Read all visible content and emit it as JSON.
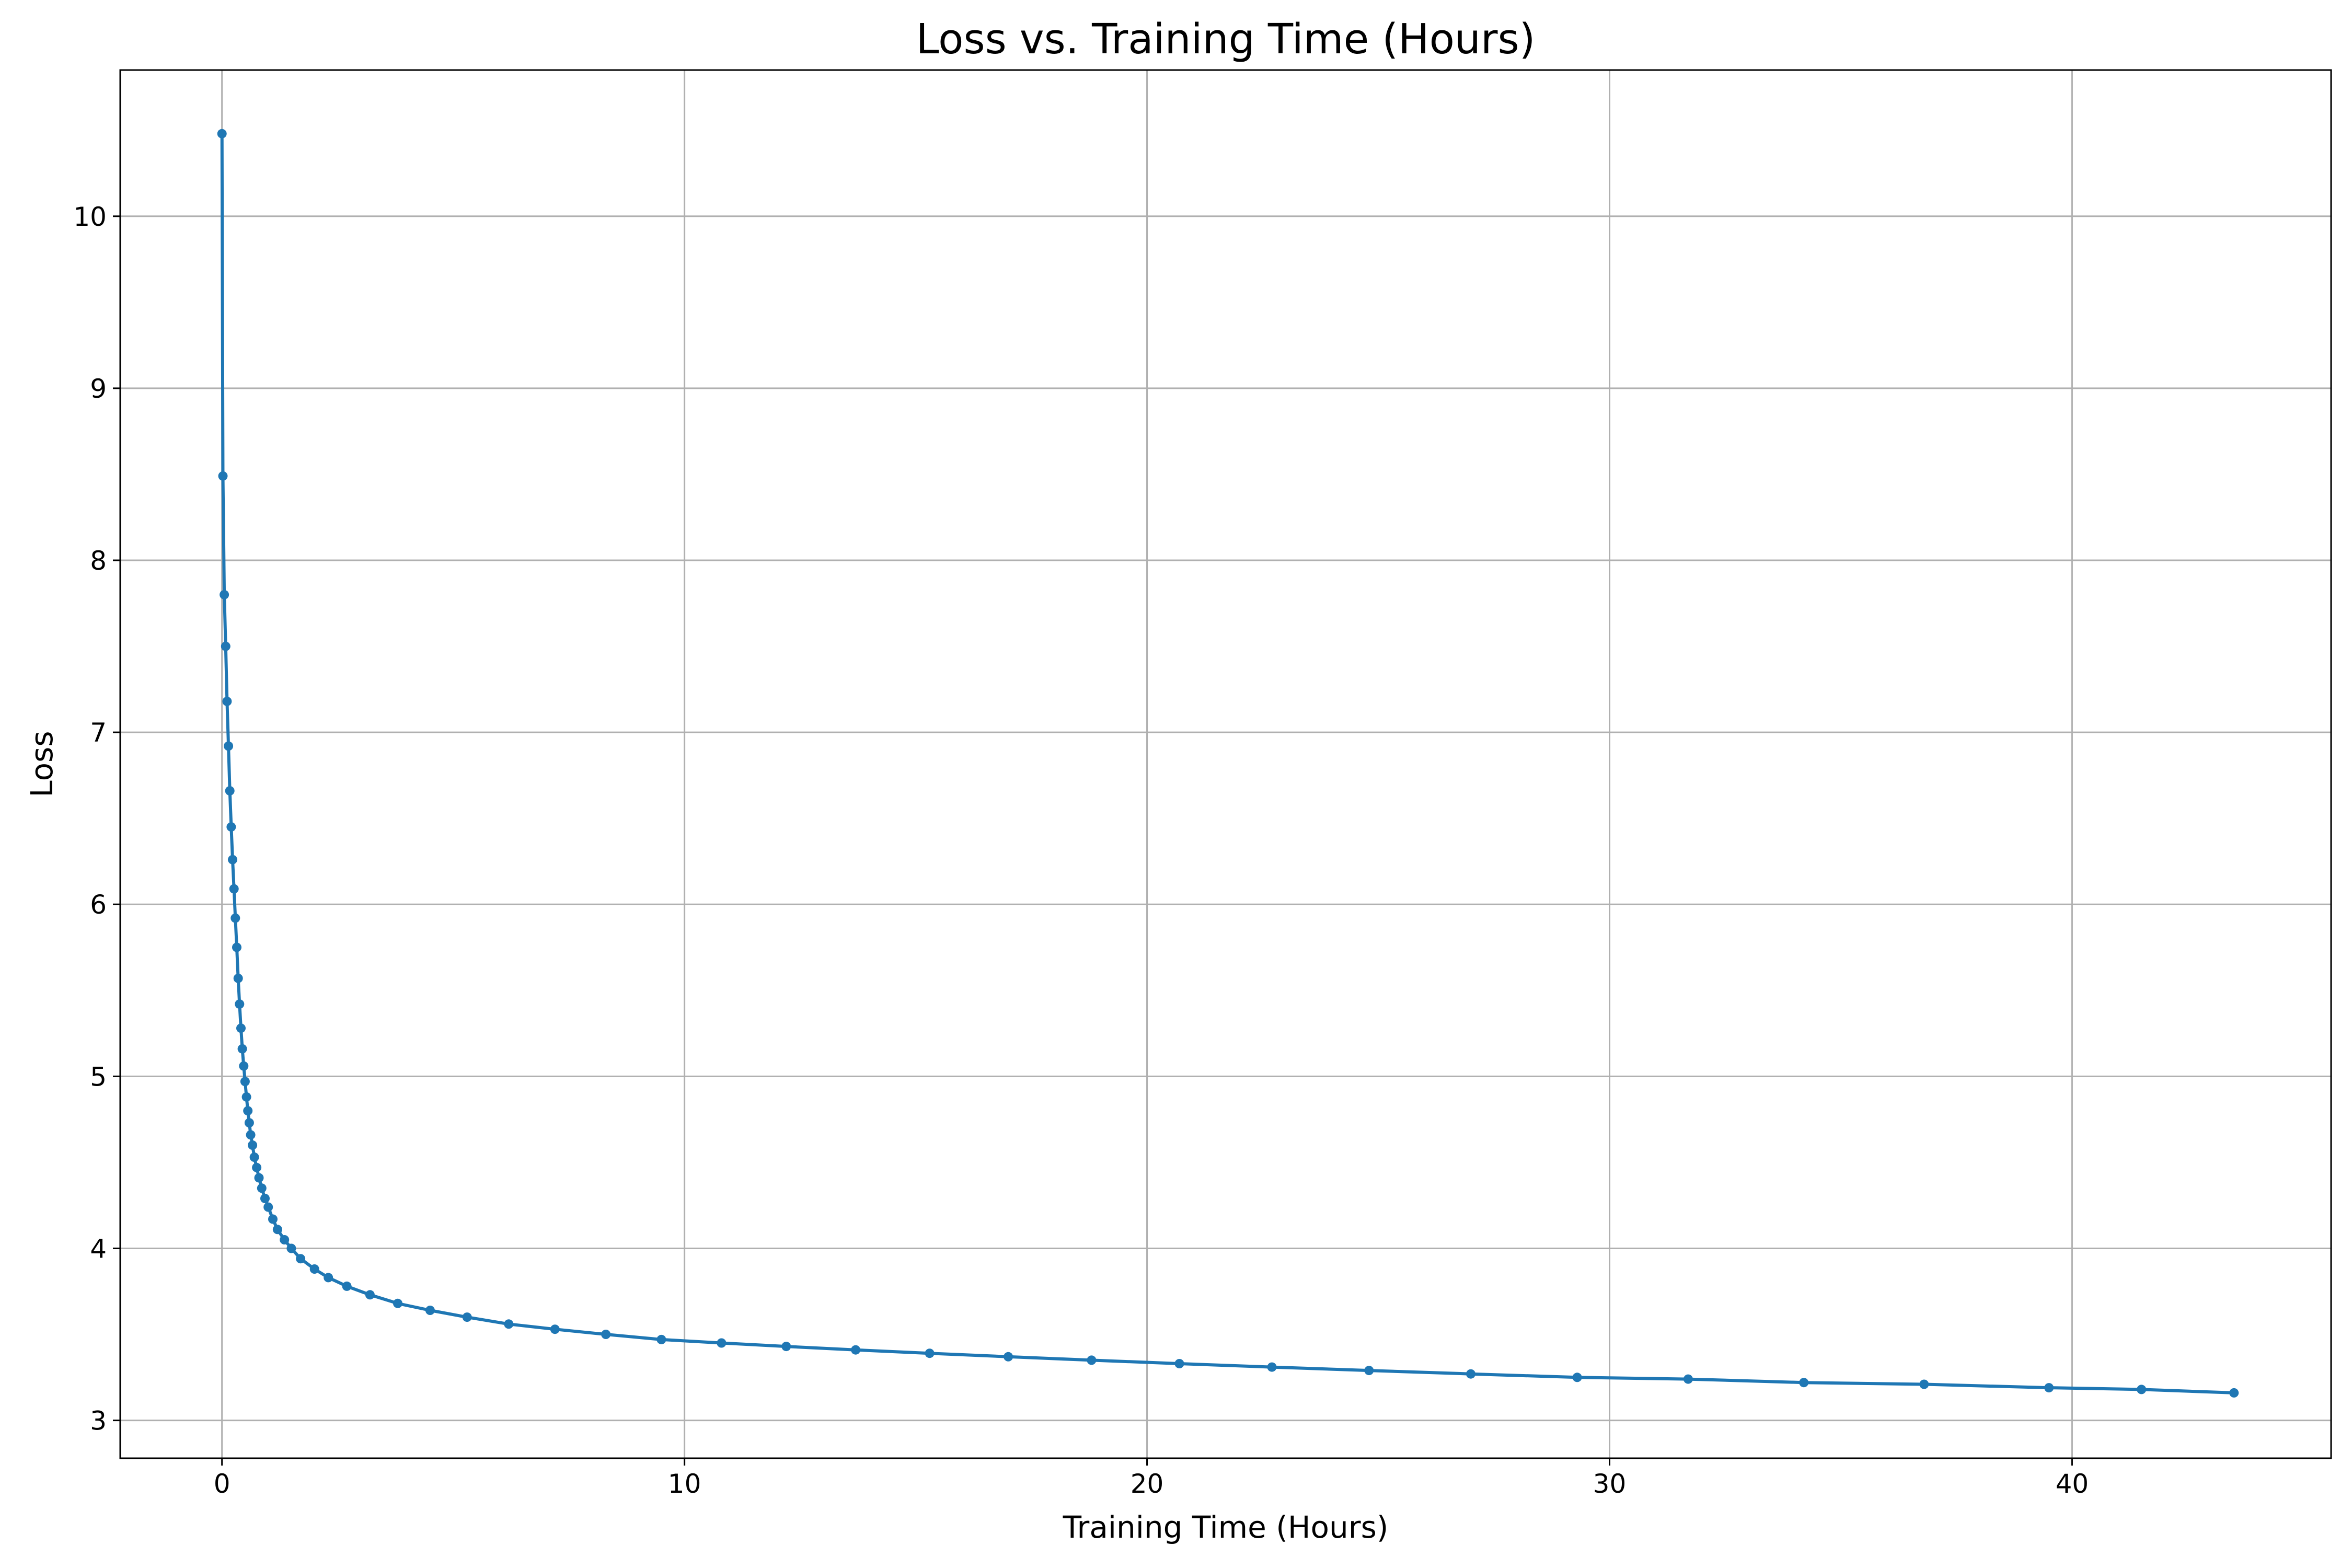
{
  "chart_data": {
    "type": "line",
    "title": "Loss vs. Training Time (Hours)",
    "xlabel": "Training Time (Hours)",
    "ylabel": "Loss",
    "xlim": [
      -2.2,
      45.6
    ],
    "ylim": [
      2.78,
      10.85
    ],
    "xticks": [
      0,
      10,
      20,
      30,
      40
    ],
    "yticks": [
      3,
      4,
      5,
      6,
      7,
      8,
      9,
      10
    ],
    "grid": true,
    "legend": "none",
    "color": "#1f77b4",
    "series": [
      {
        "x": [
          0,
          0.02,
          0.05,
          0.08,
          0.11,
          0.14,
          0.17,
          0.2,
          0.23,
          0.26,
          0.29,
          0.32,
          0.35,
          0.38,
          0.41,
          0.44,
          0.47,
          0.5,
          0.53,
          0.56,
          0.59,
          0.62,
          0.66,
          0.7,
          0.75,
          0.8,
          0.86,
          0.93,
          1.0,
          1.1,
          1.2,
          1.35,
          1.5,
          1.7,
          2.0,
          2.3,
          2.7,
          3.2,
          3.8,
          4.5,
          5.3,
          6.2,
          7.2,
          8.3,
          9.5,
          10.8,
          12.2,
          13.7,
          15.3,
          17.0,
          18.8,
          20.7,
          22.7,
          24.8,
          27.0,
          29.3,
          31.7,
          34.2,
          36.8,
          39.5,
          41.5,
          43.5
        ],
        "y": [
          10.48,
          8.49,
          7.8,
          7.5,
          7.18,
          6.92,
          6.66,
          6.45,
          6.26,
          6.09,
          5.92,
          5.75,
          5.57,
          5.42,
          5.28,
          5.16,
          5.06,
          4.97,
          4.88,
          4.8,
          4.73,
          4.66,
          4.6,
          4.53,
          4.47,
          4.41,
          4.35,
          4.29,
          4.24,
          4.17,
          4.11,
          4.05,
          4.0,
          3.94,
          3.88,
          3.83,
          3.78,
          3.73,
          3.68,
          3.64,
          3.6,
          3.56,
          3.53,
          3.5,
          3.47,
          3.45,
          3.43,
          3.41,
          3.39,
          3.37,
          3.35,
          3.33,
          3.31,
          3.29,
          3.27,
          3.25,
          3.24,
          3.22,
          3.21,
          3.19,
          3.18,
          3.16
        ]
      }
    ]
  }
}
